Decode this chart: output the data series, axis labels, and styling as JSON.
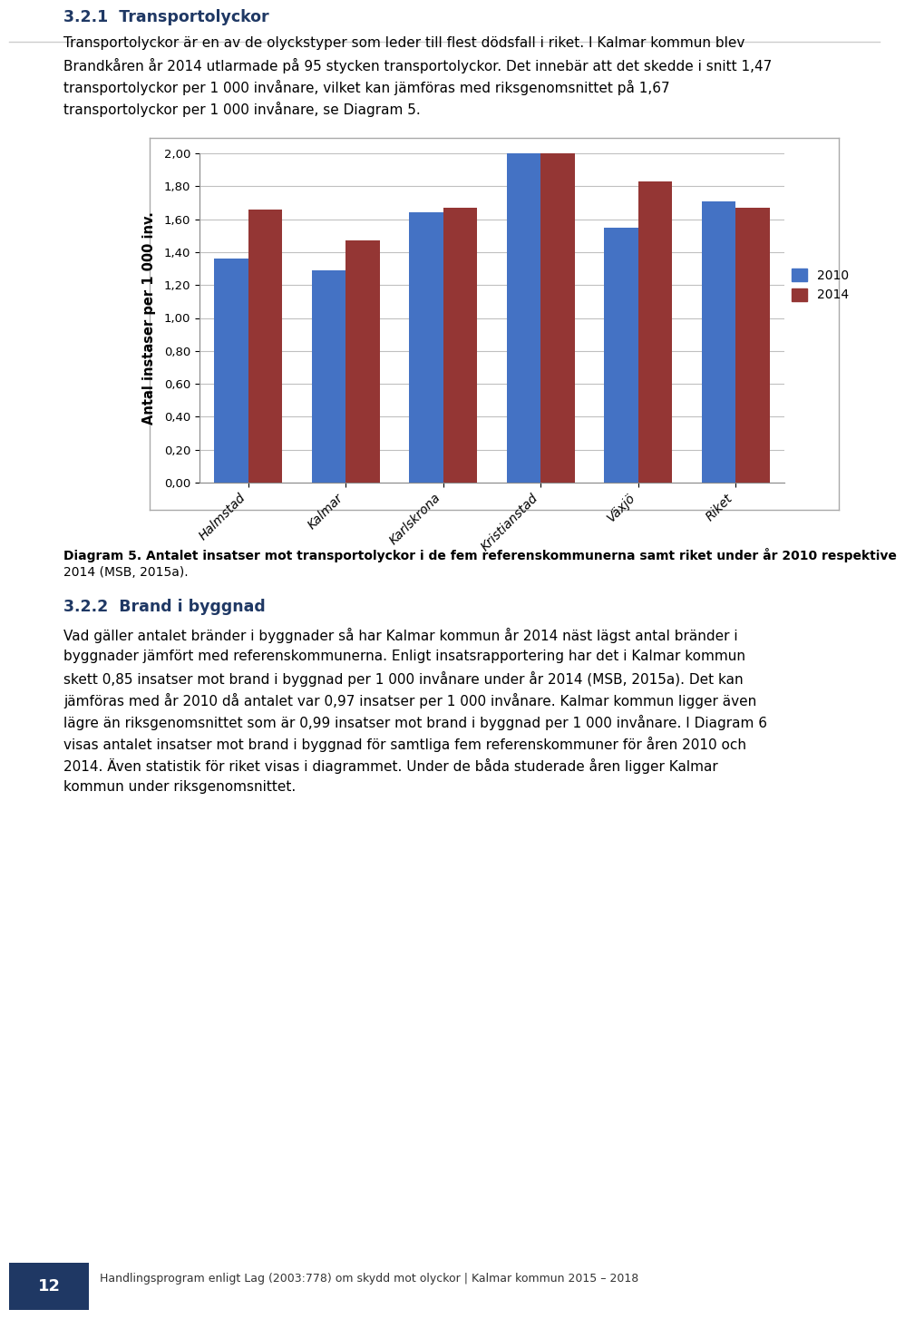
{
  "categories": [
    "Halmstad",
    "Kalmar",
    "Karlskrona",
    "Kristianstad",
    "Växjö",
    "Riket"
  ],
  "values_2010": [
    1.36,
    1.29,
    1.64,
    2.02,
    1.55,
    1.71
  ],
  "values_2014": [
    1.66,
    1.47,
    1.67,
    2.02,
    1.83,
    1.67
  ],
  "color_2010": "#4472C4",
  "color_2014": "#943634",
  "ylabel": "Antal instaser per 1 000 inv.",
  "ylim": [
    0.0,
    2.0
  ],
  "yticks": [
    0.0,
    0.2,
    0.4,
    0.6,
    0.8,
    1.0,
    1.2,
    1.4,
    1.6,
    1.8,
    2.0
  ],
  "ytick_labels": [
    "0,00",
    "0,20",
    "0,40",
    "0,60",
    "0,80",
    "1,00",
    "1,20",
    "1,40",
    "1,60",
    "1,80",
    "2,00"
  ],
  "legend_2010": "2010",
  "legend_2014": "2014",
  "bar_width": 0.35,
  "chart_bg": "#FFFFFF",
  "plot_bg": "#FFFFFF",
  "grid_color": "#C0C0C0",
  "title_text": "3.2.1  Transportolyckor",
  "body_text1_lines": [
    "Transportolyckor är en av de olyckstyper som leder till flest dödsfall i riket. I Kalmar kommun blev",
    "Brandkåren år 2014 utlarmade på 95 stycken transportolyckor. Det innebär att det skedde i snitt 1,47",
    "transportolyckor per 1 000 invånare, vilket kan jämföras med riksgenomsnittet på 1,67",
    "transportolyckor per 1 000 invånare, se Diagram 5."
  ],
  "caption_text": "Diagram 5. Antalet insatser mot transportolyckor i de fem referenskommunerna samt riket under år 2010 respektive\n2014 (MSB, 2015a).",
  "section322_title": "3.2.2  Brand i byggnad",
  "body_text2_lines": [
    "Vad gäller antalet bränder i byggnader så har Kalmar kommun år 2014 näst lägst antal bränder i",
    "byggnader jämfört med referenskommunerna. Enligt insatsrapportering har det i Kalmar kommun",
    "skett 0,85 insatser mot brand i byggnad per 1 000 invånare under år 2014 (MSB, 2015a). Det kan",
    "jämföras med år 2010 då antalet var 0,97 insatser per 1 000 invånare. Kalmar kommun ligger även",
    "lägre än riksgenomsnittet som är 0,99 insatser mot brand i byggnad per 1 000 invånare. I Diagram 6",
    "visas antalet insatser mot brand i byggnad för samtliga fem referenskommuner för åren 2010 och",
    "2014. Även statistik för riket visas i diagrammet. Under de båda studerade åren ligger Kalmar",
    "kommun under riksgenomsnittet."
  ],
  "footer_text": "Handlingsprogram enligt Lag (2003:778) om skydd mot olyckor | Kalmar kommun 2015 – 2018",
  "page_number": "12"
}
